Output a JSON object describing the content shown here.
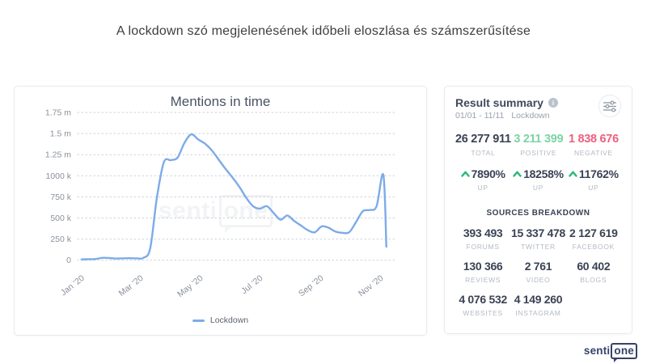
{
  "page": {
    "title": "A lockdown szó megjelenésének időbeli eloszlása és számszerűsítése"
  },
  "chart_data": {
    "type": "line",
    "title": "Mentions in time",
    "x": [
      "2020-01-05",
      "2020-01-12",
      "2020-01-19",
      "2020-01-26",
      "2020-02-02",
      "2020-02-09",
      "2020-02-16",
      "2020-02-23",
      "2020-03-01",
      "2020-03-08",
      "2020-03-15",
      "2020-03-22",
      "2020-03-29",
      "2020-04-05",
      "2020-04-12",
      "2020-04-19",
      "2020-04-26",
      "2020-05-03",
      "2020-05-10",
      "2020-05-17",
      "2020-05-24",
      "2020-05-31",
      "2020-06-07",
      "2020-06-14",
      "2020-06-21",
      "2020-06-28",
      "2020-07-05",
      "2020-07-12",
      "2020-07-19",
      "2020-07-26",
      "2020-08-02",
      "2020-08-09",
      "2020-08-16",
      "2020-08-23",
      "2020-08-30",
      "2020-09-06",
      "2020-09-13",
      "2020-09-20",
      "2020-09-27",
      "2020-10-04",
      "2020-10-11",
      "2020-10-18",
      "2020-10-25",
      "2020-11-01",
      "2020-11-08",
      "2020-11-11"
    ],
    "series": [
      {
        "name": "Lockdown",
        "color": "#7dabe8",
        "values": [
          10000,
          12000,
          14000,
          28000,
          26000,
          20000,
          22000,
          24000,
          22000,
          28000,
          140000,
          750000,
          1160000,
          1185000,
          1215000,
          1390000,
          1490000,
          1430000,
          1380000,
          1300000,
          1190000,
          1080000,
          980000,
          870000,
          740000,
          640000,
          610000,
          640000,
          560000,
          480000,
          530000,
          465000,
          410000,
          355000,
          330000,
          400000,
          385000,
          340000,
          325000,
          330000,
          450000,
          580000,
          595000,
          640000,
          1010000,
          160000
        ]
      }
    ],
    "xticks": [
      "Jan ’20",
      "Mar ’20",
      "May ’20",
      "Jul ’20",
      "Sep ’20",
      "Nov ’20"
    ],
    "xtick_dates": [
      "2020-01-01",
      "2020-03-01",
      "2020-05-01",
      "2020-07-01",
      "2020-09-01",
      "2020-11-01"
    ],
    "yticks": [
      "1.75 m",
      "1.5 m",
      "1.25 m",
      "1000 k",
      "750 k",
      "500 k",
      "250 k",
      "0"
    ],
    "ylim": [
      0,
      1750000
    ],
    "grid": "dotted-horizontal",
    "legend_position": "bottom"
  },
  "summary": {
    "title": "Result summary",
    "date_range": "01/01 - 11/11",
    "keyword": "Lockdown",
    "stats": [
      {
        "value": "26 277 911",
        "label": "TOTAL",
        "color": "#3a4254"
      },
      {
        "value": "3 211 399",
        "label": "POSITIVE",
        "color": "#7ed3a4"
      },
      {
        "value": "1 838 676",
        "label": "NEGATIVE",
        "color": "#ef5f7d"
      }
    ],
    "changes": [
      {
        "value": "7890%",
        "label": "UP"
      },
      {
        "value": "18258%",
        "label": "UP"
      },
      {
        "value": "11762%",
        "label": "UP"
      }
    ],
    "sources_title": "SOURCES BREAKDOWN",
    "sources": [
      {
        "value": "393 493",
        "label": "FORUMS"
      },
      {
        "value": "15 337 478",
        "label": "TWITTER"
      },
      {
        "value": "2 127 619",
        "label": "FACEBOOK"
      },
      {
        "value": "130 366",
        "label": "REVIEWS"
      },
      {
        "value": "2 761",
        "label": "VIDEO"
      },
      {
        "value": "60 402",
        "label": "BLOGS"
      },
      {
        "value": "4 076 532",
        "label": "WEBSITES"
      },
      {
        "value": "4 149 260",
        "label": "INSTAGRAM"
      }
    ]
  },
  "branding": {
    "logo_part1": "senti",
    "logo_part2": "one"
  },
  "colors": {
    "line": "#7dabe8",
    "positive": "#7ed3a4",
    "negative": "#ef5f7d",
    "up_arrow": "#29b877",
    "logo_navy": "#35436a",
    "grid": "#cbd1d9"
  }
}
